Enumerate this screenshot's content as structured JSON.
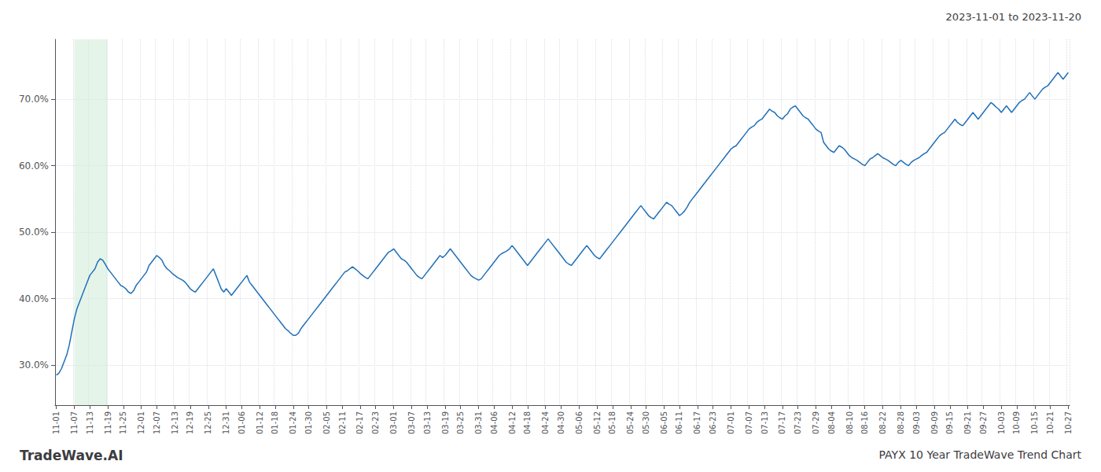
{
  "chart_data": {
    "type": "line",
    "title": "PAYX 10 Year TradeWave Trend Chart",
    "subtitle": "2023-11-01 to 2023-11-20",
    "annotations": [
      "TradeWave.AI"
    ],
    "color": "#2070b8",
    "grid": true,
    "highlight": {
      "from": "11-07",
      "to": "11-19",
      "color": "#d4edda"
    },
    "ylim": [
      24.0,
      79.0
    ],
    "yticks": [
      {
        "value": 30.0,
        "label": "30.0%"
      },
      {
        "value": 40.0,
        "label": "40.0%"
      },
      {
        "value": 50.0,
        "label": "50.0%"
      },
      {
        "value": 60.0,
        "label": "60.0%"
      },
      {
        "value": 70.0,
        "label": "70.0%"
      }
    ],
    "categories": [
      "11-01",
      null,
      null,
      null,
      null,
      null,
      null,
      "11-07",
      null,
      null,
      null,
      null,
      null,
      "11-13",
      null,
      null,
      null,
      null,
      null,
      null,
      "11-19",
      null,
      null,
      null,
      null,
      null,
      "11-25",
      null,
      null,
      null,
      null,
      null,
      null,
      "12-01",
      null,
      null,
      null,
      null,
      null,
      "12-07",
      null,
      null,
      null,
      null,
      null,
      null,
      "12-13",
      null,
      null,
      null,
      null,
      null,
      "12-19",
      null,
      null,
      null,
      null,
      null,
      null,
      "12-25",
      null,
      null,
      null,
      null,
      null,
      null,
      "12-31",
      null,
      null,
      null,
      null,
      null,
      "01-06",
      null,
      null,
      null,
      null,
      null,
      null,
      "01-12",
      null,
      null,
      null,
      null,
      null,
      "01-18",
      null,
      null,
      null,
      null,
      null,
      null,
      "01-24",
      null,
      null,
      null,
      null,
      null,
      "01-30",
      null,
      null,
      null,
      null,
      null,
      null,
      "02-05",
      null,
      null,
      null,
      null,
      null,
      "02-11",
      null,
      null,
      null,
      null,
      null,
      null,
      "02-17",
      null,
      null,
      null,
      null,
      null,
      "02-23",
      null,
      null,
      null,
      null,
      null,
      null,
      "03-01",
      null,
      null,
      null,
      null,
      null,
      null,
      "03-07",
      null,
      null,
      null,
      null,
      null,
      "03-13",
      null,
      null,
      null,
      null,
      null,
      null,
      "03-19",
      null,
      null,
      null,
      null,
      null,
      "03-25",
      null,
      null,
      null,
      null,
      null,
      null,
      "03-31",
      null,
      null,
      null,
      null,
      null,
      "04-06",
      null,
      null,
      null,
      null,
      null,
      null,
      "04-12",
      null,
      null,
      null,
      null,
      null,
      "04-18",
      null,
      null,
      null,
      null,
      null,
      null,
      "04-24",
      null,
      null,
      null,
      null,
      null,
      "04-30",
      null,
      null,
      null,
      null,
      null,
      null,
      "05-06",
      null,
      null,
      null,
      null,
      null,
      null,
      "05-12",
      null,
      null,
      null,
      null,
      null,
      "05-18",
      null,
      null,
      null,
      null,
      null,
      null,
      "05-24",
      null,
      null,
      null,
      null,
      null,
      "05-30",
      null,
      null,
      null,
      null,
      null,
      null,
      "06-05",
      null,
      null,
      null,
      null,
      null,
      "06-11",
      null,
      null,
      null,
      null,
      null,
      null,
      "06-17",
      null,
      null,
      null,
      null,
      null,
      "06-23",
      null,
      null,
      null,
      null,
      null,
      null,
      "07-01",
      null,
      null,
      null,
      null,
      null,
      null,
      "07-07",
      null,
      null,
      null,
      null,
      null,
      "07-13",
      null,
      null,
      null,
      null,
      null,
      null,
      "07-17",
      null,
      null,
      null,
      null,
      null,
      "07-23",
      null,
      null,
      null,
      null,
      null,
      null,
      "07-29",
      null,
      null,
      null,
      null,
      null,
      "08-04",
      null,
      null,
      null,
      null,
      null,
      null,
      "08-10",
      null,
      null,
      null,
      null,
      null,
      "08-16",
      null,
      null,
      null,
      null,
      null,
      null,
      "08-22",
      null,
      null,
      null,
      null,
      null,
      null,
      "08-28",
      null,
      null,
      null,
      null,
      null,
      "09-03",
      null,
      null,
      null,
      null,
      null,
      null,
      "09-09",
      null,
      null,
      null,
      null,
      null,
      "09-15",
      null,
      null,
      null,
      null,
      null,
      null,
      "09-21",
      null,
      null,
      null,
      null,
      null,
      "09-27",
      null,
      null,
      null,
      null,
      null,
      null,
      "10-03",
      null,
      null,
      null,
      null,
      null,
      "10-09",
      null,
      null,
      null,
      null,
      null,
      null,
      "10-15",
      null,
      null,
      null,
      null,
      null,
      "10-21",
      null,
      null,
      null,
      null,
      null,
      null,
      "10-27"
    ],
    "values": [
      28.5,
      28.8,
      29.5,
      30.5,
      31.5,
      33.0,
      35.0,
      37.0,
      38.5,
      39.5,
      40.5,
      41.5,
      42.5,
      43.5,
      44.0,
      44.5,
      45.5,
      46.0,
      45.8,
      45.2,
      44.5,
      44.0,
      43.5,
      43.0,
      42.5,
      42.0,
      41.8,
      41.5,
      41.0,
      40.8,
      41.2,
      42.0,
      42.5,
      43.0,
      43.5,
      44.0,
      45.0,
      45.5,
      46.0,
      46.5,
      46.2,
      45.8,
      45.0,
      44.5,
      44.2,
      43.8,
      43.5,
      43.2,
      43.0,
      42.8,
      42.5,
      42.0,
      41.5,
      41.2,
      41.0,
      41.5,
      42.0,
      42.5,
      43.0,
      43.5,
      44.0,
      44.5,
      43.5,
      42.5,
      41.5,
      41.0,
      41.5,
      41.0,
      40.5,
      41.0,
      41.5,
      42.0,
      42.5,
      43.0,
      43.5,
      42.5,
      42.0,
      41.5,
      41.0,
      40.5,
      40.0,
      39.5,
      39.0,
      38.5,
      38.0,
      37.5,
      37.0,
      36.5,
      36.0,
      35.5,
      35.2,
      34.8,
      34.5,
      34.5,
      34.8,
      35.5,
      36.0,
      36.5,
      37.0,
      37.5,
      38.0,
      38.5,
      39.0,
      39.5,
      40.0,
      40.5,
      41.0,
      41.5,
      42.0,
      42.5,
      43.0,
      43.5,
      44.0,
      44.2,
      44.5,
      44.8,
      44.5,
      44.2,
      43.8,
      43.5,
      43.2,
      43.0,
      43.5,
      44.0,
      44.5,
      45.0,
      45.5,
      46.0,
      46.5,
      47.0,
      47.2,
      47.5,
      47.0,
      46.5,
      46.0,
      45.8,
      45.5,
      45.0,
      44.5,
      44.0,
      43.5,
      43.2,
      43.0,
      43.5,
      44.0,
      44.5,
      45.0,
      45.5,
      46.0,
      46.5,
      46.2,
      46.5,
      47.0,
      47.5,
      47.0,
      46.5,
      46.0,
      45.5,
      45.0,
      44.5,
      44.0,
      43.5,
      43.2,
      43.0,
      42.8,
      43.0,
      43.5,
      44.0,
      44.5,
      45.0,
      45.5,
      46.0,
      46.5,
      46.8,
      47.0,
      47.2,
      47.5,
      48.0,
      47.5,
      47.0,
      46.5,
      46.0,
      45.5,
      45.0,
      45.5,
      46.0,
      46.5,
      47.0,
      47.5,
      48.0,
      48.5,
      49.0,
      48.5,
      48.0,
      47.5,
      47.0,
      46.5,
      46.0,
      45.5,
      45.2,
      45.0,
      45.5,
      46.0,
      46.5,
      47.0,
      47.5,
      48.0,
      47.5,
      47.0,
      46.5,
      46.2,
      46.0,
      46.5,
      47.0,
      47.5,
      48.0,
      48.5,
      49.0,
      49.5,
      50.0,
      50.5,
      51.0,
      51.5,
      52.0,
      52.5,
      53.0,
      53.5,
      54.0,
      53.5,
      53.0,
      52.5,
      52.2,
      52.0,
      52.5,
      53.0,
      53.5,
      54.0,
      54.5,
      54.2,
      54.0,
      53.5,
      53.0,
      52.5,
      52.8,
      53.2,
      53.8,
      54.5,
      55.0,
      55.5,
      56.0,
      56.5,
      57.0,
      57.5,
      58.0,
      58.5,
      59.0,
      59.5,
      60.0,
      60.5,
      61.0,
      61.5,
      62.0,
      62.5,
      62.8,
      63.0,
      63.5,
      64.0,
      64.5,
      65.0,
      65.5,
      65.8,
      66.0,
      66.5,
      66.8,
      67.0,
      67.5,
      68.0,
      68.5,
      68.2,
      68.0,
      67.5,
      67.2,
      67.0,
      67.5,
      67.8,
      68.5,
      68.8,
      69.0,
      68.5,
      68.0,
      67.5,
      67.2,
      67.0,
      66.5,
      66.0,
      65.5,
      65.2,
      65.0,
      63.5,
      63.0,
      62.5,
      62.2,
      62.0,
      62.5,
      63.0,
      62.8,
      62.5,
      62.0,
      61.5,
      61.2,
      61.0,
      60.8,
      60.5,
      60.2,
      60.0,
      60.5,
      61.0,
      61.2,
      61.5,
      61.8,
      61.5,
      61.2,
      61.0,
      60.8,
      60.5,
      60.2,
      60.0,
      60.5,
      60.8,
      60.5,
      60.2,
      60.0,
      60.5,
      60.8,
      61.0,
      61.2,
      61.5,
      61.8,
      62.0,
      62.5,
      63.0,
      63.5,
      64.0,
      64.5,
      64.8,
      65.0,
      65.5,
      66.0,
      66.5,
      67.0,
      66.5,
      66.2,
      66.0,
      66.5,
      67.0,
      67.5,
      68.0,
      67.5,
      67.0,
      67.5,
      68.0,
      68.5,
      69.0,
      69.5,
      69.2,
      68.8,
      68.5,
      68.0,
      68.5,
      69.0,
      68.5,
      68.0,
      68.5,
      69.0,
      69.5,
      69.8,
      70.0,
      70.5,
      71.0,
      70.5,
      70.0,
      70.5,
      71.0,
      71.5,
      71.8,
      72.0,
      72.5,
      73.0,
      73.5,
      74.0,
      73.5,
      73.0,
      73.5,
      74.0
    ]
  }
}
